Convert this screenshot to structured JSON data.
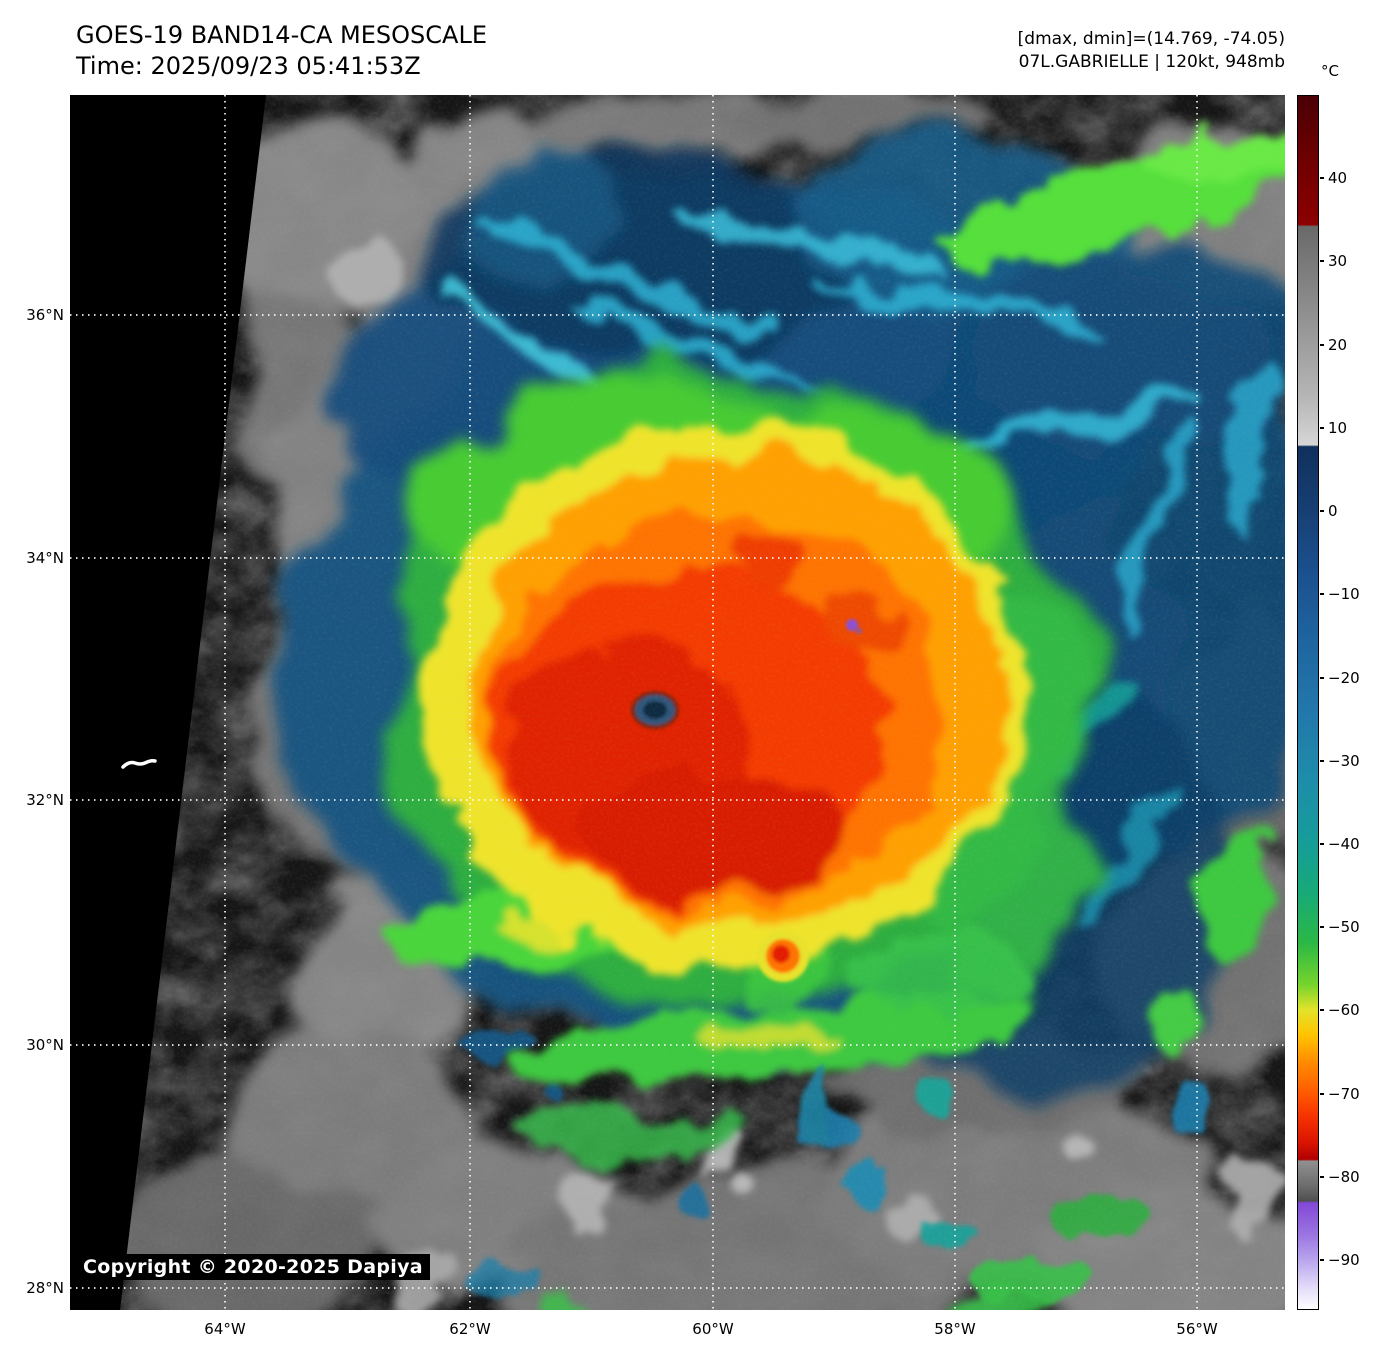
{
  "header": {
    "title": "GOES-19 BAND14-CA MESOSCALE",
    "time_line": "Time: 2025/09/23 05:41:53Z",
    "dmax_dmin": "[dmax, dmin]=(14.769, -74.05)",
    "storm_info": "07L.GABRIELLE | 120kt, 948mb"
  },
  "map": {
    "lat_labels": [
      "36°N",
      "34°N",
      "32°N",
      "30°N",
      "28°N"
    ],
    "lon_labels": [
      "64°W",
      "62°W",
      "60°W",
      "58°W",
      "56°W"
    ],
    "copyright": "Copyright © 2020-2025 Dapiya"
  },
  "colorbar": {
    "unit": "°C",
    "range": [
      50,
      -96
    ],
    "ticks": [
      {
        "v": 40,
        "label": "40"
      },
      {
        "v": 30,
        "label": "30"
      },
      {
        "v": 20,
        "label": "20"
      },
      {
        "v": 10,
        "label": "10"
      },
      {
        "v": 0,
        "label": "0"
      },
      {
        "v": -10,
        "label": "−10"
      },
      {
        "v": -20,
        "label": "−20"
      },
      {
        "v": -30,
        "label": "−30"
      },
      {
        "v": -40,
        "label": "−40"
      },
      {
        "v": -50,
        "label": "−50"
      },
      {
        "v": -60,
        "label": "−60"
      },
      {
        "v": -70,
        "label": "−70"
      },
      {
        "v": -80,
        "label": "−80"
      },
      {
        "v": -90,
        "label": "−90"
      }
    ],
    "stops": [
      {
        "v": 50,
        "c": "#4a0005"
      },
      {
        "v": 42,
        "c": "#6f0000"
      },
      {
        "v": 34.5,
        "c": "#8c0000"
      },
      {
        "v": 34.3,
        "c": "#696969"
      },
      {
        "v": 24,
        "c": "#8f8f8f"
      },
      {
        "v": 14,
        "c": "#b5b5b5"
      },
      {
        "v": 8,
        "c": "#d6d6d6"
      },
      {
        "v": 7.8,
        "c": "#10305c"
      },
      {
        "v": 0,
        "c": "#173f74"
      },
      {
        "v": -8,
        "c": "#1b5290"
      },
      {
        "v": -16,
        "c": "#1f66a0"
      },
      {
        "v": -24,
        "c": "#2277aa"
      },
      {
        "v": -32,
        "c": "#1e8cab"
      },
      {
        "v": -40,
        "c": "#169d98"
      },
      {
        "v": -46,
        "c": "#17aa77"
      },
      {
        "v": -52,
        "c": "#2cb845"
      },
      {
        "v": -57,
        "c": "#77d42c"
      },
      {
        "v": -60,
        "c": "#e3e32a"
      },
      {
        "v": -63,
        "c": "#ffc400"
      },
      {
        "v": -66,
        "c": "#ff9000"
      },
      {
        "v": -70,
        "c": "#ff5a00"
      },
      {
        "v": -73,
        "c": "#f53000"
      },
      {
        "v": -76,
        "c": "#d91400"
      },
      {
        "v": -78,
        "c": "#b00000"
      },
      {
        "v": -78.2,
        "c": "#909090"
      },
      {
        "v": -81,
        "c": "#6f6f6f"
      },
      {
        "v": -83,
        "c": "#4f4f4f"
      },
      {
        "v": -83.2,
        "c": "#8248d6"
      },
      {
        "v": -87,
        "c": "#9a74e0"
      },
      {
        "v": -90,
        "c": "#b7a3ec"
      },
      {
        "v": -93,
        "c": "#ded5f7"
      },
      {
        "v": -96,
        "c": "#ffffff"
      }
    ]
  }
}
